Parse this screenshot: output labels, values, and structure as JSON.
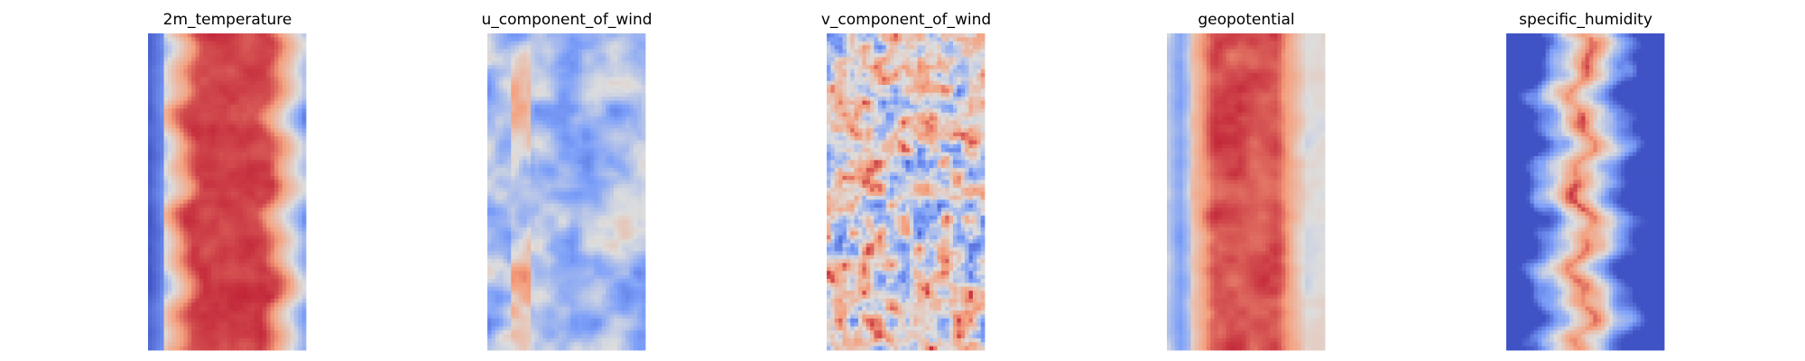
{
  "chart_data": [
    {
      "type": "heatmap",
      "title": "2m_temperature",
      "colormap": "coolwarm",
      "axes": "off",
      "colors": {
        "low": "#3b4cc0",
        "mid": "#dddddd",
        "high": "#b40426"
      }
    },
    {
      "type": "heatmap",
      "title": "u_component_of_wind",
      "colormap": "coolwarm",
      "axes": "off",
      "colors": {
        "low": "#3b4cc0",
        "mid": "#dddddd",
        "high": "#b40426"
      }
    },
    {
      "type": "heatmap",
      "title": "v_component_of_wind",
      "colormap": "coolwarm",
      "axes": "off",
      "colors": {
        "low": "#3b4cc0",
        "mid": "#dddddd",
        "high": "#b40426"
      }
    },
    {
      "type": "heatmap",
      "title": "geopotential",
      "colormap": "coolwarm",
      "axes": "off",
      "colors": {
        "low": "#3b4cc0",
        "mid": "#dddddd",
        "high": "#b40426"
      }
    },
    {
      "type": "heatmap",
      "title": "specific_humidity",
      "colormap": "coolwarm",
      "axes": "off",
      "colors": {
        "low": "#3b4cc0",
        "mid": "#dddddd",
        "high": "#b40426"
      }
    }
  ]
}
